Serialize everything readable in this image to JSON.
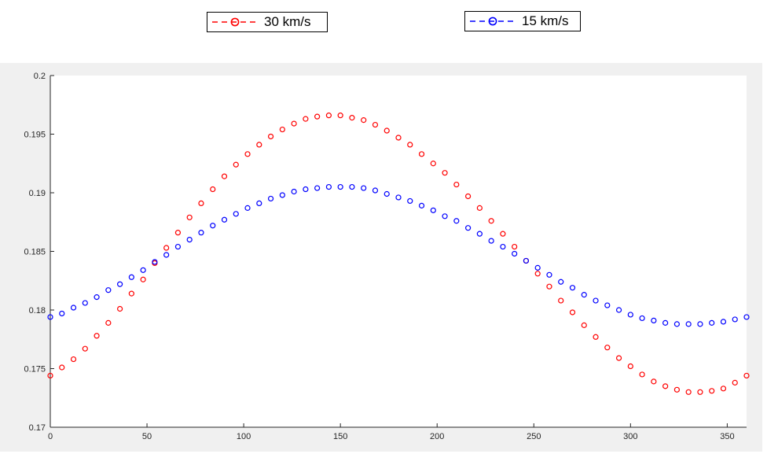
{
  "chart_data": {
    "type": "scatter",
    "title": "",
    "xlabel": "",
    "ylabel": "",
    "xlim": [
      0,
      360
    ],
    "ylim": [
      0.17,
      0.2
    ],
    "grid": false,
    "xticks": [
      "0",
      "50",
      "100",
      "150",
      "200",
      "250",
      "300",
      "350"
    ],
    "yticks": [
      "0.17",
      "0.175",
      "0.18",
      "0.185",
      "0.19",
      "0.195",
      "0.2"
    ],
    "series": [
      {
        "name": "30 km/s",
        "color": "#ff0000",
        "marker": "open-circle",
        "x": [
          0,
          6,
          12,
          18,
          24,
          30,
          36,
          42,
          48,
          54,
          60,
          66,
          72,
          78,
          84,
          90,
          96,
          102,
          108,
          114,
          120,
          126,
          132,
          138,
          144,
          150,
          156,
          162,
          168,
          174,
          180,
          186,
          192,
          198,
          204,
          210,
          216,
          222,
          228,
          234,
          240,
          246,
          252,
          258,
          264,
          270,
          276,
          282,
          288,
          294,
          300,
          306,
          312,
          318,
          324,
          330,
          336,
          342,
          348,
          354,
          360
        ],
        "y": [
          0.1744,
          0.1751,
          0.1758,
          0.1767,
          0.1778,
          0.1789,
          0.1801,
          0.1814,
          0.1826,
          0.184,
          0.1853,
          0.1866,
          0.1879,
          0.1891,
          0.1903,
          0.1914,
          0.1924,
          0.1933,
          0.1941,
          0.1948,
          0.1954,
          0.1959,
          0.1963,
          0.1965,
          0.1966,
          0.1966,
          0.1964,
          0.1962,
          0.1958,
          0.1953,
          0.1947,
          0.1941,
          0.1933,
          0.1925,
          0.1917,
          0.1907,
          0.1897,
          0.1887,
          0.1876,
          0.1865,
          0.1854,
          0.1842,
          0.1831,
          0.182,
          0.1808,
          0.1798,
          0.1787,
          0.1777,
          0.1768,
          0.1759,
          0.1752,
          0.1745,
          0.1739,
          0.1735,
          0.1732,
          0.173,
          0.173,
          0.1731,
          0.1733,
          0.1738,
          0.1744
        ]
      },
      {
        "name": "15 km/s",
        "color": "#0000ff",
        "marker": "open-circle",
        "x": [
          0,
          6,
          12,
          18,
          24,
          30,
          36,
          42,
          48,
          54,
          60,
          66,
          72,
          78,
          84,
          90,
          96,
          102,
          108,
          114,
          120,
          126,
          132,
          138,
          144,
          150,
          156,
          162,
          168,
          174,
          180,
          186,
          192,
          198,
          204,
          210,
          216,
          222,
          228,
          234,
          240,
          246,
          252,
          258,
          264,
          270,
          276,
          282,
          288,
          294,
          300,
          306,
          312,
          318,
          324,
          330,
          336,
          342,
          348,
          354,
          360
        ],
        "y": [
          0.1794,
          0.1797,
          0.1802,
          0.1806,
          0.1811,
          0.1817,
          0.1822,
          0.1828,
          0.1834,
          0.1841,
          0.1847,
          0.1854,
          0.186,
          0.1866,
          0.1872,
          0.1877,
          0.1882,
          0.1887,
          0.1891,
          0.1895,
          0.1898,
          0.1901,
          0.1903,
          0.1904,
          0.1905,
          0.1905,
          0.1905,
          0.1904,
          0.1902,
          0.1899,
          0.1896,
          0.1893,
          0.1889,
          0.1885,
          0.188,
          0.1876,
          0.187,
          0.1865,
          0.1859,
          0.1854,
          0.1848,
          0.1842,
          0.1836,
          0.183,
          0.1824,
          0.1819,
          0.1813,
          0.1808,
          0.1804,
          0.18,
          0.1796,
          0.1793,
          0.1791,
          0.1789,
          0.1788,
          0.1788,
          0.1788,
          0.1789,
          0.179,
          0.1792,
          0.1794
        ]
      }
    ]
  }
}
